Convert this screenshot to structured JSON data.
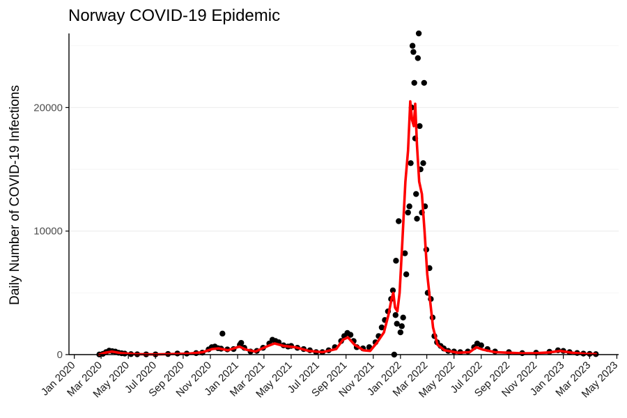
{
  "chart_data": {
    "type": "scatter",
    "title": "Norway COVID-19 Epidemic",
    "xlabel": "",
    "ylabel": "Daily Number of COVID-19 Infections",
    "ylim": [
      0,
      26000
    ],
    "yticks": [
      0,
      10000,
      20000
    ],
    "ytick_labels": [
      "0",
      "10000",
      "20000"
    ],
    "xlim": [
      "2019-12-20",
      "2023-05-05"
    ],
    "xticks": [
      "2020-01-01",
      "2020-03-01",
      "2020-05-01",
      "2020-07-01",
      "2020-09-01",
      "2020-11-01",
      "2021-01-01",
      "2021-03-01",
      "2021-05-01",
      "2021-07-01",
      "2021-09-01",
      "2021-11-01",
      "2022-01-01",
      "2022-03-01",
      "2022-05-01",
      "2022-07-01",
      "2022-09-01",
      "2022-11-01",
      "2023-01-01",
      "2023-03-01",
      "2023-05-01"
    ],
    "xtick_labels": [
      "Jan 2020",
      "Mar 2020",
      "May 2020",
      "Jul 2020",
      "Sep 2020",
      "Nov 2020",
      "Jan 2021",
      "Mar 2021",
      "May 2021",
      "Jul 2021",
      "Sep 2021",
      "Nov 2021",
      "Jan 2022",
      "Mar 2022",
      "May 2022",
      "Jul 2022",
      "Sep 2022",
      "Nov 2022",
      "Jan 2023",
      "Mar 2023",
      "May 2023"
    ],
    "grid": true,
    "legend": "none",
    "series": [
      {
        "kind": "points",
        "color": "#000000",
        "points": [
          [
            "2020-02-26",
            10
          ],
          [
            "2020-03-05",
            60
          ],
          [
            "2020-03-12",
            200
          ],
          [
            "2020-03-19",
            320
          ],
          [
            "2020-03-26",
            280
          ],
          [
            "2020-04-02",
            240
          ],
          [
            "2020-04-09",
            150
          ],
          [
            "2020-04-16",
            110
          ],
          [
            "2020-04-23",
            80
          ],
          [
            "2020-05-07",
            40
          ],
          [
            "2020-05-21",
            25
          ],
          [
            "2020-06-10",
            20
          ],
          [
            "2020-07-01",
            20
          ],
          [
            "2020-07-29",
            50
          ],
          [
            "2020-08-19",
            90
          ],
          [
            "2020-09-09",
            80
          ],
          [
            "2020-09-30",
            120
          ],
          [
            "2020-10-14",
            160
          ],
          [
            "2020-10-28",
            420
          ],
          [
            "2020-11-04",
            600
          ],
          [
            "2020-11-11",
            650
          ],
          [
            "2020-11-18",
            520
          ],
          [
            "2020-11-25",
            480
          ],
          [
            "2020-11-28",
            1700
          ],
          [
            "2020-12-09",
            420
          ],
          [
            "2020-12-23",
            450
          ],
          [
            "2021-01-06",
            800
          ],
          [
            "2021-01-09",
            950
          ],
          [
            "2021-01-16",
            550
          ],
          [
            "2021-01-30",
            250
          ],
          [
            "2021-02-13",
            300
          ],
          [
            "2021-02-27",
            550
          ],
          [
            "2021-03-13",
            900
          ],
          [
            "2021-03-20",
            1200
          ],
          [
            "2021-03-27",
            1100
          ],
          [
            "2021-04-03",
            1000
          ],
          [
            "2021-04-14",
            750
          ],
          [
            "2021-04-24",
            650
          ],
          [
            "2021-05-01",
            700
          ],
          [
            "2021-05-15",
            550
          ],
          [
            "2021-05-29",
            450
          ],
          [
            "2021-06-12",
            350
          ],
          [
            "2021-06-26",
            200
          ],
          [
            "2021-07-10",
            200
          ],
          [
            "2021-07-24",
            350
          ],
          [
            "2021-08-07",
            600
          ],
          [
            "2021-08-21",
            1100
          ],
          [
            "2021-08-28",
            1500
          ],
          [
            "2021-09-04",
            1750
          ],
          [
            "2021-09-11",
            1600
          ],
          [
            "2021-09-18",
            1100
          ],
          [
            "2021-09-25",
            600
          ],
          [
            "2021-10-09",
            500
          ],
          [
            "2021-10-23",
            600
          ],
          [
            "2021-11-06",
            1000
          ],
          [
            "2021-11-13",
            1500
          ],
          [
            "2021-11-20",
            2200
          ],
          [
            "2021-11-27",
            2800
          ],
          [
            "2021-12-04",
            3500
          ],
          [
            "2021-12-11",
            4500
          ],
          [
            "2021-12-15",
            5200
          ],
          [
            "2021-12-18",
            0
          ],
          [
            "2021-12-21",
            3200
          ],
          [
            "2021-12-22",
            7600
          ],
          [
            "2021-12-24",
            2500
          ],
          [
            "2021-12-28",
            10800
          ],
          [
            "2022-01-01",
            1800
          ],
          [
            "2022-01-04",
            2300
          ],
          [
            "2022-01-07",
            3000
          ],
          [
            "2022-01-11",
            8200
          ],
          [
            "2022-01-14",
            6500
          ],
          [
            "2022-01-18",
            11500
          ],
          [
            "2022-01-21",
            12000
          ],
          [
            "2022-01-24",
            15500
          ],
          [
            "2022-01-26",
            20000
          ],
          [
            "2022-01-28",
            25000
          ],
          [
            "2022-01-30",
            24500
          ],
          [
            "2022-02-01",
            22000
          ],
          [
            "2022-02-03",
            17500
          ],
          [
            "2022-02-05",
            13000
          ],
          [
            "2022-02-07",
            11000
          ],
          [
            "2022-02-09",
            24000
          ],
          [
            "2022-02-11",
            26000
          ],
          [
            "2022-02-13",
            18500
          ],
          [
            "2022-02-15",
            15000
          ],
          [
            "2022-02-18",
            11500
          ],
          [
            "2022-02-21",
            15500
          ],
          [
            "2022-02-23",
            22000
          ],
          [
            "2022-02-25",
            12000
          ],
          [
            "2022-02-28",
            8500
          ],
          [
            "2022-03-03",
            5000
          ],
          [
            "2022-03-07",
            7000
          ],
          [
            "2022-03-10",
            4500
          ],
          [
            "2022-03-14",
            3000
          ],
          [
            "2022-03-18",
            1500
          ],
          [
            "2022-03-24",
            1000
          ],
          [
            "2022-04-01",
            700
          ],
          [
            "2022-04-08",
            500
          ],
          [
            "2022-04-18",
            300
          ],
          [
            "2022-05-01",
            250
          ],
          [
            "2022-05-15",
            200
          ],
          [
            "2022-06-01",
            250
          ],
          [
            "2022-06-15",
            600
          ],
          [
            "2022-06-22",
            900
          ],
          [
            "2022-07-01",
            750
          ],
          [
            "2022-07-15",
            450
          ],
          [
            "2022-08-01",
            250
          ],
          [
            "2022-09-01",
            200
          ],
          [
            "2022-10-01",
            120
          ],
          [
            "2022-11-01",
            150
          ],
          [
            "2022-12-01",
            230
          ],
          [
            "2022-12-20",
            350
          ],
          [
            "2023-01-01",
            300
          ],
          [
            "2023-01-15",
            200
          ],
          [
            "2023-02-01",
            130
          ],
          [
            "2023-02-15",
            80
          ],
          [
            "2023-03-01",
            60
          ],
          [
            "2023-03-15",
            40
          ]
        ]
      },
      {
        "kind": "smooth",
        "color": "#ff0000",
        "points": [
          [
            "2020-02-26",
            0
          ],
          [
            "2020-03-10",
            150
          ],
          [
            "2020-03-25",
            250
          ],
          [
            "2020-04-15",
            120
          ],
          [
            "2020-05-15",
            40
          ],
          [
            "2020-07-01",
            15
          ],
          [
            "2020-08-15",
            50
          ],
          [
            "2020-09-15",
            80
          ],
          [
            "2020-10-15",
            200
          ],
          [
            "2020-11-05",
            450
          ],
          [
            "2020-11-20",
            500
          ],
          [
            "2020-12-10",
            350
          ],
          [
            "2021-01-05",
            650
          ],
          [
            "2021-01-20",
            400
          ],
          [
            "2021-02-10",
            250
          ],
          [
            "2021-03-10",
            700
          ],
          [
            "2021-03-25",
            900
          ],
          [
            "2021-04-15",
            700
          ],
          [
            "2021-05-10",
            600
          ],
          [
            "2021-06-10",
            300
          ],
          [
            "2021-07-10",
            200
          ],
          [
            "2021-08-10",
            450
          ],
          [
            "2021-08-25",
            1200
          ],
          [
            "2021-09-05",
            1400
          ],
          [
            "2021-09-20",
            800
          ],
          [
            "2021-10-10",
            350
          ],
          [
            "2021-10-25",
            300
          ],
          [
            "2021-11-10",
            1000
          ],
          [
            "2021-11-25",
            1800
          ],
          [
            "2021-12-05",
            3200
          ],
          [
            "2021-12-12",
            4500
          ],
          [
            "2021-12-16",
            5000
          ],
          [
            "2021-12-20",
            3800
          ],
          [
            "2021-12-25",
            3500
          ],
          [
            "2021-12-30",
            5000
          ],
          [
            "2022-01-05",
            9000
          ],
          [
            "2022-01-12",
            14000
          ],
          [
            "2022-01-18",
            16500
          ],
          [
            "2022-01-23",
            20500
          ],
          [
            "2022-01-27",
            19000
          ],
          [
            "2022-01-31",
            18500
          ],
          [
            "2022-02-03",
            20300
          ],
          [
            "2022-02-07",
            17000
          ],
          [
            "2022-02-12",
            14000
          ],
          [
            "2022-02-18",
            13000
          ],
          [
            "2022-02-24",
            10000
          ],
          [
            "2022-03-02",
            6500
          ],
          [
            "2022-03-08",
            4500
          ],
          [
            "2022-03-15",
            2200
          ],
          [
            "2022-03-25",
            800
          ],
          [
            "2022-04-10",
            350
          ],
          [
            "2022-05-10",
            150
          ],
          [
            "2022-06-05",
            200
          ],
          [
            "2022-06-20",
            600
          ],
          [
            "2022-07-05",
            400
          ],
          [
            "2022-08-01",
            200
          ],
          [
            "2022-09-01",
            150
          ],
          [
            "2022-10-01",
            100
          ],
          [
            "2022-11-01",
            120
          ],
          [
            "2022-12-01",
            180
          ],
          [
            "2022-12-25",
            300
          ],
          [
            "2023-01-20",
            150
          ],
          [
            "2023-02-20",
            60
          ],
          [
            "2023-03-15",
            40
          ]
        ]
      }
    ]
  }
}
